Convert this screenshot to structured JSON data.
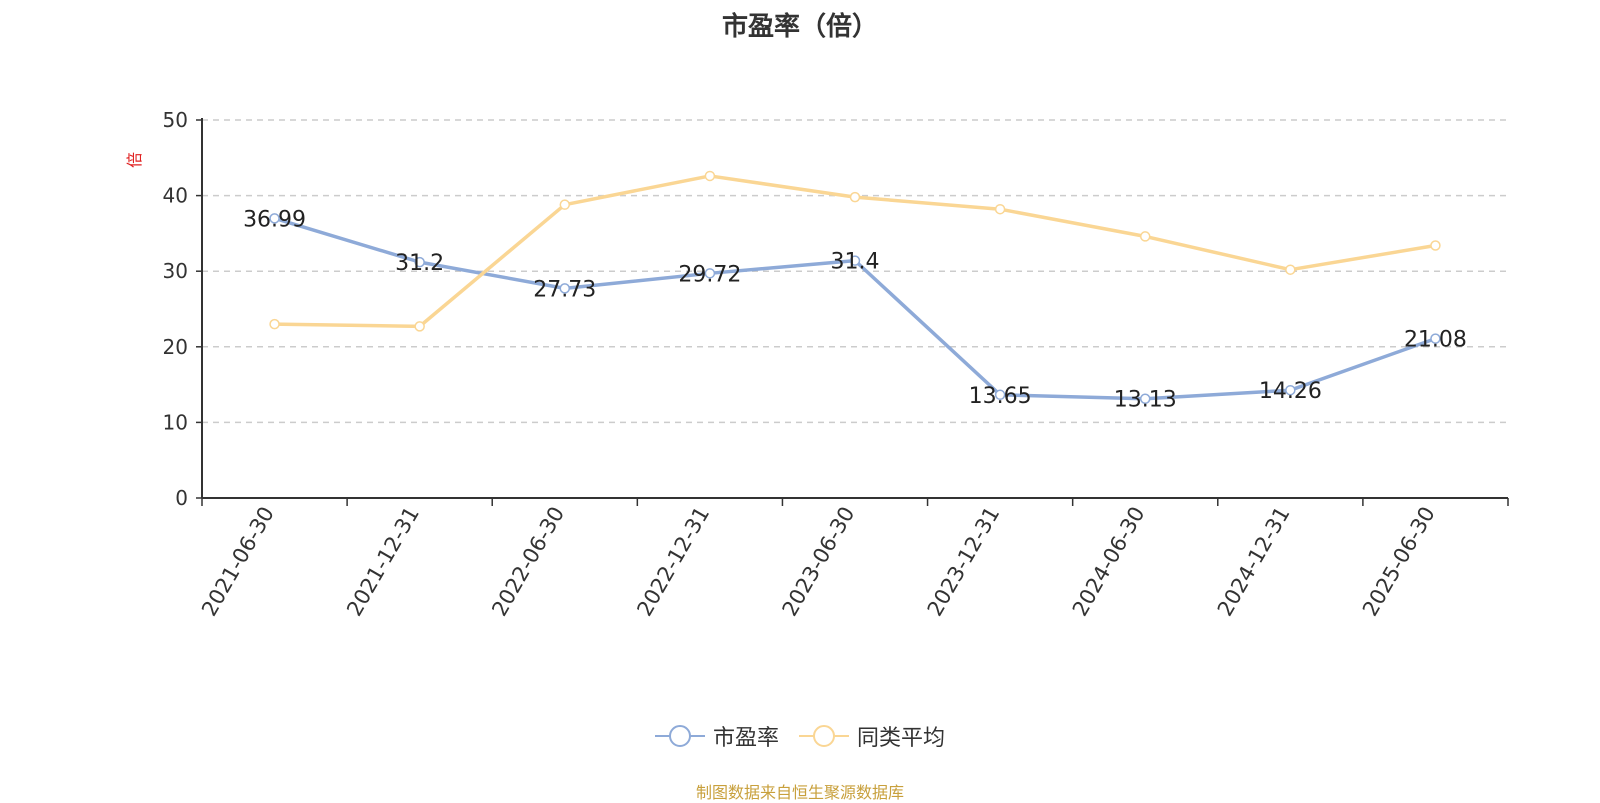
{
  "chart_data": {
    "type": "line",
    "title": "市盈率（倍）",
    "ylabel": "倍",
    "ylim": [
      0,
      50
    ],
    "yticks": [
      0,
      10,
      20,
      30,
      40,
      50
    ],
    "grid": true,
    "legend_position": "bottom",
    "categories": [
      "2021-06-30",
      "2021-12-31",
      "2022-06-30",
      "2022-12-31",
      "2023-06-30",
      "2023-12-31",
      "2024-06-30",
      "2024-12-31",
      "2025-06-30"
    ],
    "series": [
      {
        "name": "市盈率",
        "color": "#8eaad8",
        "values": [
          36.99,
          31.2,
          27.73,
          29.72,
          31.4,
          13.65,
          13.13,
          14.26,
          21.08
        ],
        "data_labels": [
          "36.99",
          "31.2",
          "27.73",
          "29.72",
          "31.4",
          "13.65",
          "13.13",
          "14.26",
          "21.08"
        ]
      },
      {
        "name": "同类平均",
        "color": "#fad694",
        "values": [
          23.0,
          22.7,
          38.8,
          42.6,
          39.8,
          38.2,
          34.6,
          30.2,
          33.4
        ]
      }
    ]
  },
  "footer": {
    "source": "制图数据来自恒生聚源数据库"
  },
  "colors": {
    "ylabel": "#e02020",
    "axis": "#333333",
    "grid": "#cccccc"
  }
}
